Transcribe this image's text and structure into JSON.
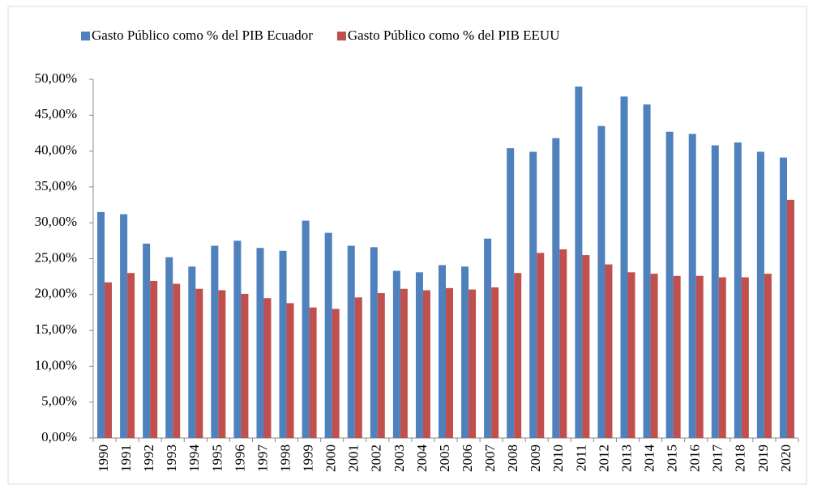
{
  "chart_data": {
    "type": "bar",
    "categories": [
      "1990",
      "1991",
      "1992",
      "1993",
      "1994",
      "1995",
      "1996",
      "1997",
      "1998",
      "1999",
      "2000",
      "2001",
      "2002",
      "2003",
      "2004",
      "2005",
      "2006",
      "2007",
      "2008",
      "2009",
      "2010",
      "2011",
      "2012",
      "2013",
      "2014",
      "2015",
      "2016",
      "2017",
      "2018",
      "2019",
      "2020"
    ],
    "series": [
      {
        "name": "Gasto Público como % del PIB Ecuador",
        "color": "#4f81bd",
        "values": [
          31.5,
          31.2,
          27.1,
          25.2,
          23.9,
          26.8,
          27.5,
          26.5,
          26.1,
          30.3,
          28.6,
          26.8,
          26.6,
          23.3,
          23.1,
          24.1,
          23.9,
          27.8,
          40.4,
          39.9,
          41.8,
          49.0,
          43.5,
          47.6,
          46.5,
          42.7,
          42.4,
          40.8,
          41.2,
          39.9,
          39.1
        ]
      },
      {
        "name": "Gasto Público como % del PIB EEUU",
        "color": "#c0504d",
        "values": [
          21.7,
          23.0,
          21.9,
          21.5,
          20.8,
          20.6,
          20.1,
          19.5,
          18.8,
          18.2,
          18.0,
          19.6,
          20.2,
          20.8,
          20.6,
          20.9,
          20.7,
          21.0,
          23.0,
          25.8,
          26.3,
          25.5,
          24.2,
          23.1,
          22.9,
          22.6,
          22.6,
          22.4,
          22.4,
          22.9,
          33.2
        ]
      }
    ],
    "ylim": [
      0,
      50
    ],
    "yticks": [
      {
        "value": 0,
        "label": "0,00%"
      },
      {
        "value": 5,
        "label": "5,00%"
      },
      {
        "value": 10,
        "label": "10,00%"
      },
      {
        "value": 15,
        "label": "15,00%"
      },
      {
        "value": 20,
        "label": "20,00%"
      },
      {
        "value": 25,
        "label": "25,00%"
      },
      {
        "value": 30,
        "label": "30,00%"
      },
      {
        "value": 35,
        "label": "35,00%"
      },
      {
        "value": 40,
        "label": "40,00%"
      },
      {
        "value": 45,
        "label": "45,00%"
      },
      {
        "value": 50,
        "label": "50,00%"
      }
    ],
    "grid": false,
    "legend": "top"
  }
}
